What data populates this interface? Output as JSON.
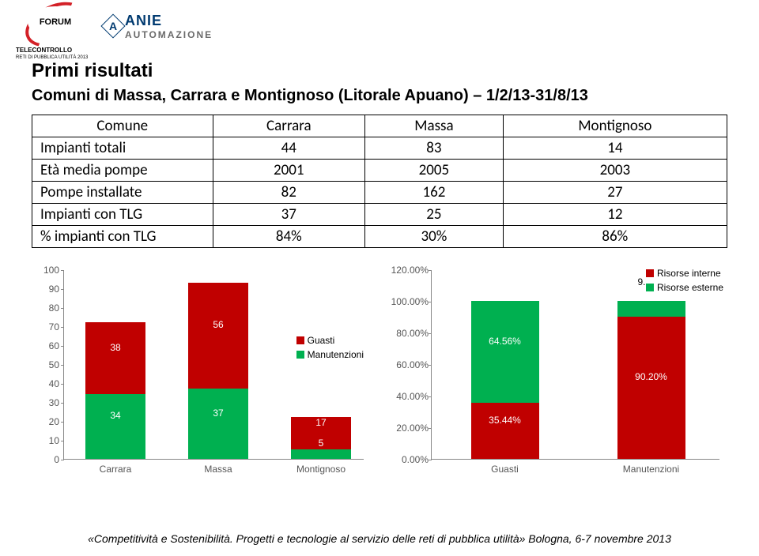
{
  "header": {
    "forum_label": "FORUM",
    "telecontrollo": "TELECONTROLLO",
    "reti": "RETI DI PUBBLICA\nUTILITÀ 2013",
    "anie_main": "ANIE",
    "anie_sub": "AUTOMAZIONE"
  },
  "title": "Primi risultati",
  "subtitle": "Comuni di Massa, Carrara e Montignoso (Litorale Apuano) – 1/2/13-31/8/13",
  "table": {
    "cols": [
      "Comune",
      "Carrara",
      "Massa",
      "Montignoso"
    ],
    "rows": [
      [
        "Impianti totali",
        "44",
        "83",
        "14"
      ],
      [
        "Età media pompe",
        "2001",
        "2005",
        "2003"
      ],
      [
        "Pompe installate",
        "82",
        "162",
        "27"
      ],
      [
        "Impianti con TLG",
        "37",
        "25",
        "12"
      ],
      [
        "% impianti con TLG",
        "84%",
        "30%",
        "86%"
      ]
    ]
  },
  "colors": {
    "red": "#c00000",
    "green": "#00b050",
    "axis": "#888888",
    "text": "#555555"
  },
  "chart_left": {
    "ymax": 100,
    "ystep": 10,
    "categories": [
      "Carrara",
      "Massa",
      "Montignoso"
    ],
    "legend": [
      {
        "label": "Guasti",
        "color": "#c00000"
      },
      {
        "label": "Manutenzioni",
        "color": "#00b050"
      }
    ],
    "stacks": [
      {
        "manut": 34,
        "guasti": 38
      },
      {
        "manut": 37,
        "guasti": 56
      },
      {
        "manut": 5,
        "guasti": 17
      }
    ]
  },
  "chart_right": {
    "ymax": 120,
    "ystep": 20,
    "categories": [
      "Guasti",
      "Manutenzioni"
    ],
    "legend": [
      {
        "label": "Risorse interne",
        "color": "#c00000"
      },
      {
        "label": "Risorse esterne",
        "color": "#00b050"
      }
    ],
    "stacks": [
      {
        "interne": 35.44,
        "esterne": 64.56,
        "il": "35.44%",
        "el": "64.56%"
      },
      {
        "interne": 90.2,
        "esterne": 9.8,
        "il": "90.20%",
        "el": "9.80%"
      }
    ]
  },
  "footer": "«Competitività e Sostenibilità. Progetti e tecnologie al servizio delle reti di pubblica utilità» Bologna, 6-7 novembre 2013"
}
